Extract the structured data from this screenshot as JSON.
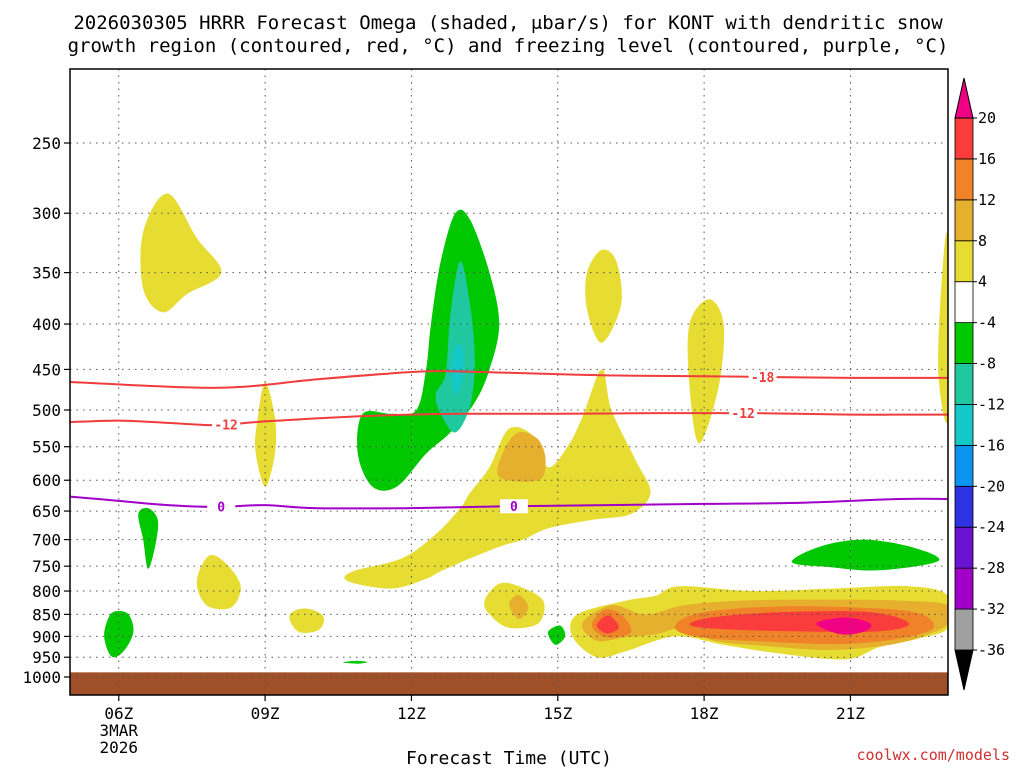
{
  "title_line1": "2026030305 HRRR Forecast Omega (shaded, μbar/s) for KONT with dendritic snow",
  "title_line2": "growth region (contoured, red, °C) and freezing level (contoured, purple, °C)",
  "credit": "coolwx.com/models",
  "chart_data": {
    "type": "heatmap",
    "title": "2026030305 HRRR Forecast Omega (shaded, μbar/s) for KONT with dendritic snow growth region (contoured, red, °C) and freezing level (contoured, purple, °C)",
    "xlabel": "Forecast Time (UTC)",
    "ylabel": "",
    "x_unit": "forecast hour from 2026-03-03 05Z",
    "xlim": [
      5,
      23
    ],
    "ylim": [
      1050,
      200
    ],
    "x_ticks": [
      {
        "hour": 6,
        "label": "06Z",
        "sub1": "3MAR",
        "sub2": "2026"
      },
      {
        "hour": 9,
        "label": "09Z"
      },
      {
        "hour": 12,
        "label": "12Z"
      },
      {
        "hour": 15,
        "label": "15Z"
      },
      {
        "hour": 18,
        "label": "18Z"
      },
      {
        "hour": 21,
        "label": "21Z"
      }
    ],
    "y_ticks": [
      250,
      300,
      350,
      400,
      450,
      500,
      550,
      600,
      650,
      700,
      750,
      800,
      850,
      900,
      950,
      1000
    ],
    "grid": true,
    "colorbar": {
      "levels": [
        -36,
        -32,
        -28,
        -24,
        -20,
        -16,
        -12,
        -8,
        -4,
        4,
        8,
        12,
        16,
        20
      ],
      "colors": [
        "#000000",
        "#a0a0a0",
        "#a000c8",
        "#6a14d2",
        "#2d33e0",
        "#0b95f0",
        "#14c8c8",
        "#20c8a0",
        "#00c800",
        "#ffffff",
        "#e6dc32",
        "#e6af2d",
        "#f08228",
        "#fa3c3c",
        "#f00082"
      ]
    },
    "omega_regions": [
      {
        "color": "#00c800",
        "poly": [
          [
            11.0,
            505
          ],
          [
            10.9,
            560
          ],
          [
            11.2,
            610
          ],
          [
            11.7,
            610
          ],
          [
            12.3,
            560
          ],
          [
            12.8,
            530
          ],
          [
            13.3,
            490
          ],
          [
            13.6,
            450
          ],
          [
            13.8,
            400
          ],
          [
            13.6,
            350
          ],
          [
            13.2,
            305
          ],
          [
            12.9,
            300
          ],
          [
            12.6,
            340
          ],
          [
            12.4,
            400
          ],
          [
            12.3,
            450
          ],
          [
            12.1,
            500
          ],
          [
            11.6,
            505
          ]
        ]
      },
      {
        "color": "#20c8a0",
        "poly": [
          [
            12.7,
            455
          ],
          [
            12.5,
            480
          ],
          [
            12.6,
            505
          ],
          [
            12.9,
            530
          ],
          [
            13.2,
            495
          ],
          [
            13.3,
            440
          ],
          [
            13.2,
            380
          ],
          [
            13.0,
            340
          ],
          [
            12.8,
            390
          ]
        ]
      },
      {
        "color": "#14c8c8",
        "poly": [
          [
            12.9,
            425
          ],
          [
            12.8,
            450
          ],
          [
            12.9,
            480
          ],
          [
            13.05,
            460
          ],
          [
            13.05,
            425
          ]
        ]
      },
      {
        "color": "#e6dc32",
        "poly": [
          [
            6.5,
            315
          ],
          [
            6.5,
            365
          ],
          [
            6.9,
            388
          ],
          [
            7.4,
            370
          ],
          [
            8.1,
            350
          ],
          [
            7.6,
            320
          ],
          [
            7.0,
            285
          ]
        ]
      },
      {
        "color": "#e6dc32",
        "poly": [
          [
            8.85,
            510
          ],
          [
            8.8,
            555
          ],
          [
            9.0,
            610
          ],
          [
            9.2,
            560
          ],
          [
            9.2,
            510
          ],
          [
            9.0,
            465
          ]
        ]
      },
      {
        "color": "#e6dc32",
        "poly": [
          [
            7.6,
            780
          ],
          [
            7.8,
            830
          ],
          [
            8.3,
            835
          ],
          [
            8.5,
            790
          ],
          [
            8.2,
            745
          ],
          [
            7.85,
            730
          ]
        ]
      },
      {
        "color": "#e6dc32",
        "poly": [
          [
            9.5,
            860
          ],
          [
            9.7,
            890
          ],
          [
            10.1,
            885
          ],
          [
            10.2,
            855
          ],
          [
            9.9,
            838
          ],
          [
            9.6,
            842
          ]
        ]
      },
      {
        "color": "#e6dc32",
        "poly": [
          [
            15.6,
            350
          ],
          [
            15.6,
            385
          ],
          [
            15.9,
            420
          ],
          [
            16.3,
            380
          ],
          [
            16.2,
            340
          ],
          [
            15.9,
            330
          ]
        ]
      },
      {
        "color": "#e6dc32",
        "poly": [
          [
            17.7,
            400
          ],
          [
            17.7,
            470
          ],
          [
            17.9,
            545
          ],
          [
            18.3,
            470
          ],
          [
            18.4,
            400
          ],
          [
            18.1,
            375
          ]
        ]
      },
      {
        "color": "#e6dc32",
        "poly": [
          [
            22.9,
            340
          ],
          [
            22.8,
            450
          ],
          [
            23.0,
            510
          ],
          [
            23.0,
            325
          ]
        ]
      },
      {
        "color": "#e6dc32",
        "poly": [
          [
            13.0,
            645
          ],
          [
            12.5,
            690
          ],
          [
            11.8,
            735
          ],
          [
            10.8,
            760
          ],
          [
            10.7,
            780
          ],
          [
            11.6,
            795
          ],
          [
            12.3,
            775
          ],
          [
            12.6,
            760
          ],
          [
            13.2,
            735
          ],
          [
            13.9,
            710
          ],
          [
            14.3,
            700
          ],
          [
            14.8,
            680
          ],
          [
            15.7,
            665
          ],
          [
            16.5,
            655
          ],
          [
            16.9,
            620
          ],
          [
            16.6,
            570
          ],
          [
            16.1,
            500
          ],
          [
            15.9,
            450
          ],
          [
            15.5,
            510
          ],
          [
            15.2,
            550
          ],
          [
            14.8,
            580
          ],
          [
            14.5,
            535
          ],
          [
            14.0,
            525
          ],
          [
            13.6,
            580
          ],
          [
            13.2,
            620
          ]
        ]
      },
      {
        "color": "#e6dc32",
        "poly": [
          [
            13.5,
            820
          ],
          [
            13.6,
            850
          ],
          [
            14.0,
            880
          ],
          [
            14.6,
            870
          ],
          [
            14.7,
            820
          ],
          [
            14.2,
            790
          ],
          [
            13.8,
            785
          ]
        ]
      },
      {
        "color": "#e6dc32",
        "poly": [
          [
            15.4,
            850
          ],
          [
            15.3,
            900
          ],
          [
            15.8,
            950
          ],
          [
            16.4,
            935
          ],
          [
            17.4,
            900
          ],
          [
            18.4,
            920
          ],
          [
            19.5,
            940
          ],
          [
            20.9,
            955
          ],
          [
            21.6,
            925
          ],
          [
            22.4,
            905
          ],
          [
            23.0,
            880
          ],
          [
            23.0,
            810
          ],
          [
            22.2,
            790
          ],
          [
            20.6,
            795
          ],
          [
            19.0,
            800
          ],
          [
            17.5,
            790
          ],
          [
            17.0,
            810
          ],
          [
            16.4,
            820
          ]
        ]
      },
      {
        "color": "#e6af2d",
        "poly": [
          [
            13.8,
            595
          ],
          [
            14.6,
            600
          ],
          [
            14.75,
            570
          ],
          [
            14.6,
            540
          ],
          [
            14.2,
            530
          ],
          [
            13.9,
            555
          ]
        ]
      },
      {
        "color": "#e6af2d",
        "poly": [
          [
            14.0,
            828
          ],
          [
            14.2,
            860
          ],
          [
            14.4,
            835
          ],
          [
            14.2,
            808
          ]
        ]
      },
      {
        "color": "#e6af2d",
        "poly": [
          [
            15.5,
            870
          ],
          [
            15.8,
            910
          ],
          [
            16.4,
            902
          ],
          [
            17.0,
            895
          ],
          [
            17.6,
            880
          ],
          [
            18.2,
            910
          ],
          [
            19.2,
            922
          ],
          [
            20.6,
            932
          ],
          [
            21.8,
            920
          ],
          [
            22.6,
            895
          ],
          [
            23.0,
            870
          ],
          [
            23.0,
            830
          ],
          [
            22.0,
            820
          ],
          [
            20.5,
            818
          ],
          [
            18.8,
            820
          ],
          [
            17.6,
            830
          ],
          [
            16.8,
            850
          ],
          [
            16.1,
            830
          ]
        ]
      },
      {
        "color": "#f08228",
        "poly": [
          [
            15.7,
            875
          ],
          [
            16.0,
            902
          ],
          [
            16.5,
            890
          ],
          [
            16.3,
            850
          ],
          [
            15.95,
            840
          ]
        ]
      },
      {
        "color": "#f08228",
        "poly": [
          [
            17.4,
            880
          ],
          [
            17.9,
            902
          ],
          [
            19.2,
            912
          ],
          [
            20.8,
            918
          ],
          [
            22.0,
            905
          ],
          [
            22.7,
            880
          ],
          [
            22.3,
            845
          ],
          [
            20.6,
            833
          ],
          [
            19.0,
            835
          ],
          [
            17.8,
            850
          ]
        ]
      },
      {
        "color": "#fa3c3c",
        "poly": [
          [
            15.8,
            875
          ],
          [
            16.0,
            893
          ],
          [
            16.25,
            880
          ],
          [
            16.1,
            855
          ],
          [
            15.95,
            855
          ]
        ]
      },
      {
        "color": "#fa3c3c",
        "poly": [
          [
            17.7,
            872
          ],
          [
            18.2,
            882
          ],
          [
            19.8,
            888
          ],
          [
            21.6,
            888
          ],
          [
            22.2,
            870
          ],
          [
            21.4,
            845
          ],
          [
            19.6,
            845
          ],
          [
            18.2,
            856
          ]
        ]
      },
      {
        "color": "#f00082",
        "poly": [
          [
            20.3,
            870
          ],
          [
            20.8,
            895
          ],
          [
            21.3,
            888
          ],
          [
            21.4,
            870
          ],
          [
            20.9,
            857
          ]
        ]
      },
      {
        "color": "#00c800",
        "poly": [
          [
            6.4,
            655
          ],
          [
            6.5,
            700
          ],
          [
            6.6,
            755
          ],
          [
            6.75,
            710
          ],
          [
            6.8,
            665
          ],
          [
            6.6,
            645
          ]
        ]
      },
      {
        "color": "#00c800",
        "poly": [
          [
            5.8,
            855
          ],
          [
            5.7,
            900
          ],
          [
            5.85,
            948
          ],
          [
            6.1,
            935
          ],
          [
            6.3,
            890
          ],
          [
            6.2,
            850
          ],
          [
            5.95,
            843
          ]
        ]
      },
      {
        "color": "#00c800",
        "poly": [
          [
            19.8,
            742
          ],
          [
            20.6,
            752
          ],
          [
            21.6,
            758
          ],
          [
            22.8,
            740
          ],
          [
            22.3,
            715
          ],
          [
            21.3,
            700
          ],
          [
            20.4,
            712
          ]
        ]
      },
      {
        "color": "#00c800",
        "poly": [
          [
            14.8,
            890
          ],
          [
            14.95,
            920
          ],
          [
            15.15,
            900
          ],
          [
            15.05,
            875
          ]
        ]
      },
      {
        "color": "#00c800",
        "poly": [
          [
            10.6,
            963
          ],
          [
            10.9,
            966
          ],
          [
            11.1,
            962
          ],
          [
            10.85,
            959
          ]
        ]
      }
    ],
    "isotherms": [
      {
        "label": "-18",
        "color": "#f03c3c",
        "label_hour": 19.2,
        "points": [
          [
            5,
            465
          ],
          [
            8,
            472
          ],
          [
            10,
            462
          ],
          [
            11.5,
            455
          ],
          [
            12.5,
            452
          ],
          [
            14,
            454
          ],
          [
            16,
            457
          ],
          [
            18,
            458
          ],
          [
            21,
            460
          ],
          [
            23,
            460
          ]
        ]
      },
      {
        "label": "-12",
        "color": "#f03c3c",
        "label_hour": 8.2,
        "points": [
          [
            5,
            516
          ],
          [
            6,
            514
          ],
          [
            7,
            517
          ],
          [
            8,
            520
          ],
          [
            9,
            515
          ],
          [
            11,
            508
          ],
          [
            13,
            505
          ],
          [
            15,
            505
          ],
          [
            17,
            504
          ],
          [
            19,
            504
          ],
          [
            21,
            506
          ],
          [
            23,
            506
          ]
        ]
      },
      {
        "label": "-12",
        "color": "#f03c3c",
        "label_hour": 18.8,
        "points": []
      },
      {
        "label": "0",
        "color": "#a000c8",
        "label_hour": 8.1,
        "points": [
          [
            5,
            626
          ],
          [
            6,
            633
          ],
          [
            7,
            640
          ],
          [
            8,
            643
          ],
          [
            9,
            640
          ],
          [
            10,
            645
          ],
          [
            12,
            645
          ],
          [
            14,
            642
          ],
          [
            16,
            640
          ],
          [
            18,
            638
          ],
          [
            20,
            636
          ],
          [
            22,
            630
          ],
          [
            23,
            630
          ]
        ]
      },
      {
        "label": "0",
        "color": "#a000c8",
        "label_hour": 14.1,
        "points": []
      }
    ],
    "ground": {
      "color": "#a05028",
      "from_pressure": 988
    }
  }
}
